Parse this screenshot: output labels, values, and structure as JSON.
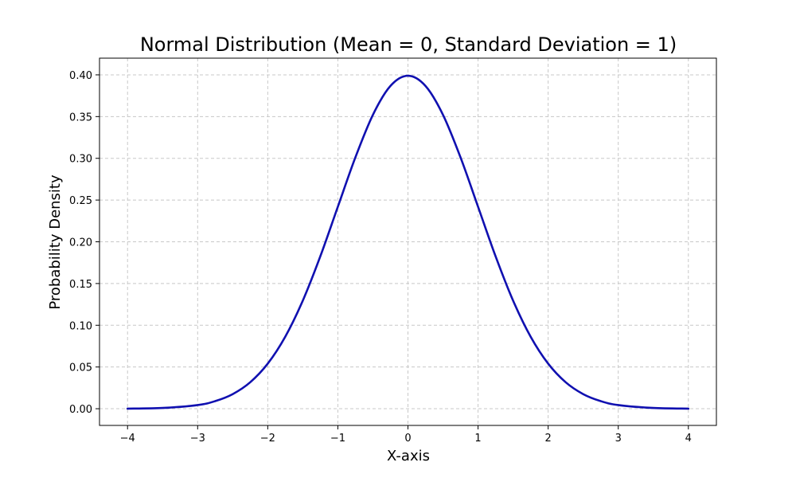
{
  "chart_data": {
    "type": "line",
    "title": "Normal Distribution (Mean = 0, Standard Deviation = 1)",
    "xlabel": "X-axis",
    "ylabel": "Probability Density",
    "xlim": [
      -4.4,
      4.4
    ],
    "ylim": [
      -0.02,
      0.42
    ],
    "x_ticks": [
      -4,
      -3,
      -2,
      -1,
      0,
      1,
      2,
      3,
      4
    ],
    "x_tick_labels": [
      "−4",
      "−3",
      "−2",
      "−1",
      "0",
      "1",
      "2",
      "3",
      "4"
    ],
    "y_ticks": [
      0.0,
      0.05,
      0.1,
      0.15,
      0.2,
      0.25,
      0.3,
      0.35,
      0.4
    ],
    "y_tick_labels": [
      "0.00",
      "0.05",
      "0.10",
      "0.15",
      "0.20",
      "0.25",
      "0.30",
      "0.35",
      "0.40"
    ],
    "grid": true,
    "series": [
      {
        "color": "#1010b0",
        "x": [
          -4.0,
          -3.5,
          -3.0,
          -2.75,
          -2.5,
          -2.25,
          -2.0,
          -1.75,
          -1.5,
          -1.25,
          -1.0,
          -0.75,
          -0.5,
          -0.25,
          0.0,
          0.25,
          0.5,
          0.75,
          1.0,
          1.25,
          1.5,
          1.75,
          2.0,
          2.25,
          2.5,
          2.75,
          3.0,
          3.5,
          4.0
        ],
        "y": [
          0.0001,
          0.0009,
          0.0044,
          0.0091,
          0.0175,
          0.0317,
          0.054,
          0.0863,
          0.1295,
          0.1826,
          0.242,
          0.3011,
          0.3521,
          0.3867,
          0.3989,
          0.3867,
          0.3521,
          0.3011,
          0.242,
          0.1826,
          0.1295,
          0.0863,
          0.054,
          0.0317,
          0.0175,
          0.0091,
          0.0044,
          0.0009,
          0.0001
        ]
      }
    ]
  }
}
